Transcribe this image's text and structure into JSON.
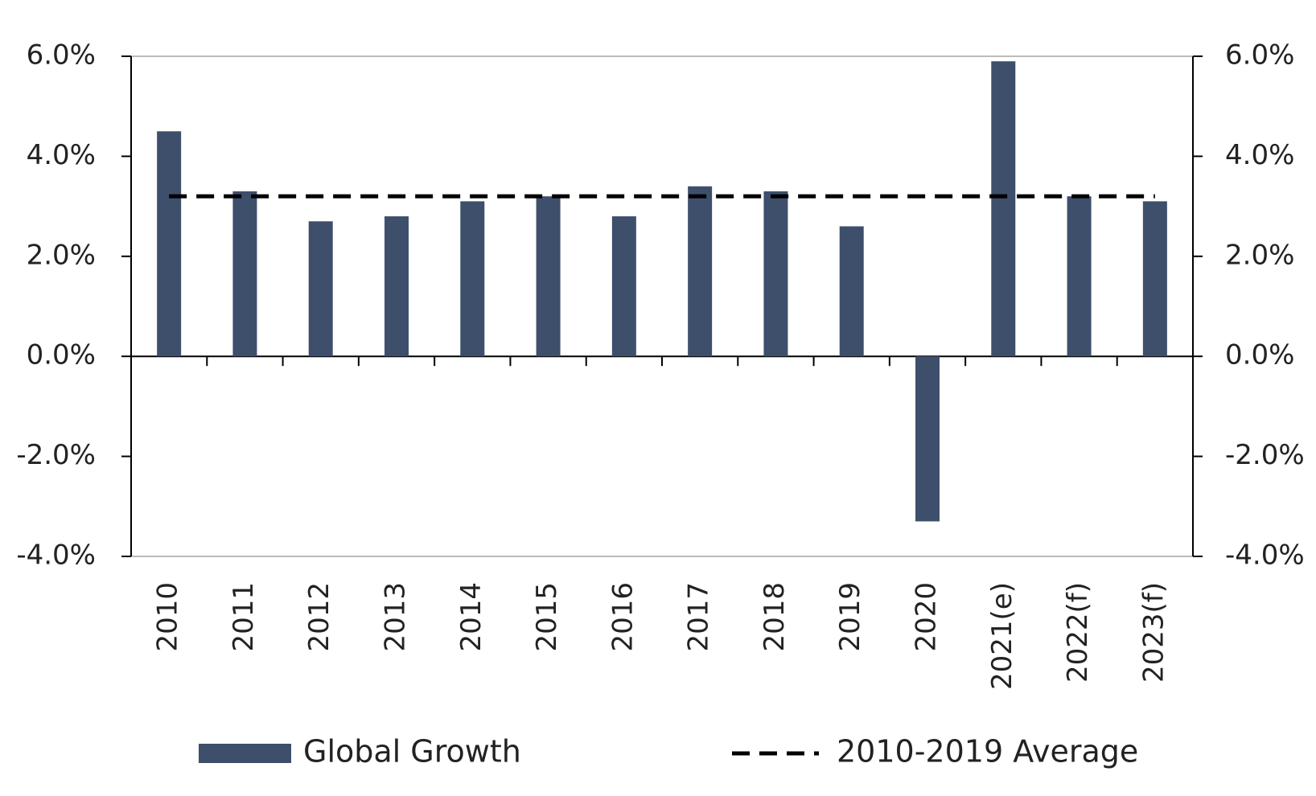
{
  "chart_data": {
    "type": "bar",
    "categories": [
      "2010",
      "2011",
      "2012",
      "2013",
      "2014",
      "2015",
      "2016",
      "2017",
      "2018",
      "2019",
      "2020",
      "2021(e)",
      "2022(f)",
      "2023(f)"
    ],
    "series": [
      {
        "name": "Global Growth",
        "type": "bar",
        "color": "#3e4f6c",
        "values": [
          4.5,
          3.3,
          2.7,
          2.8,
          3.1,
          3.2,
          2.8,
          3.4,
          3.3,
          2.6,
          -3.3,
          5.9,
          3.2,
          3.1
        ]
      },
      {
        "name": "2010-2019 Average",
        "type": "line",
        "dashed": true,
        "color": "#000000",
        "values": [
          3.2,
          3.2,
          3.2,
          3.2,
          3.2,
          3.2,
          3.2,
          3.2,
          3.2,
          3.2,
          3.2,
          3.2,
          3.2,
          3.2
        ]
      }
    ],
    "ylim": [
      -4,
      6
    ],
    "yticks": [
      {
        "value": -4,
        "label": "-4.0%"
      },
      {
        "value": -2,
        "label": "-2.0%"
      },
      {
        "value": 0,
        "label": "0.0%"
      },
      {
        "value": 2,
        "label": "2.0%"
      },
      {
        "value": 4,
        "label": "4.0%"
      },
      {
        "value": 6,
        "label": "6.0%"
      }
    ],
    "y2lim": [
      -4,
      6
    ],
    "y2ticks": [
      {
        "value": -4,
        "label": "-4.0%"
      },
      {
        "value": -2,
        "label": "-2.0%"
      },
      {
        "value": 0,
        "label": "0.0%"
      },
      {
        "value": 2,
        "label": "2.0%"
      },
      {
        "value": 4,
        "label": "4.0%"
      },
      {
        "value": 6,
        "label": "6.0%"
      }
    ],
    "legend": "bottom"
  }
}
